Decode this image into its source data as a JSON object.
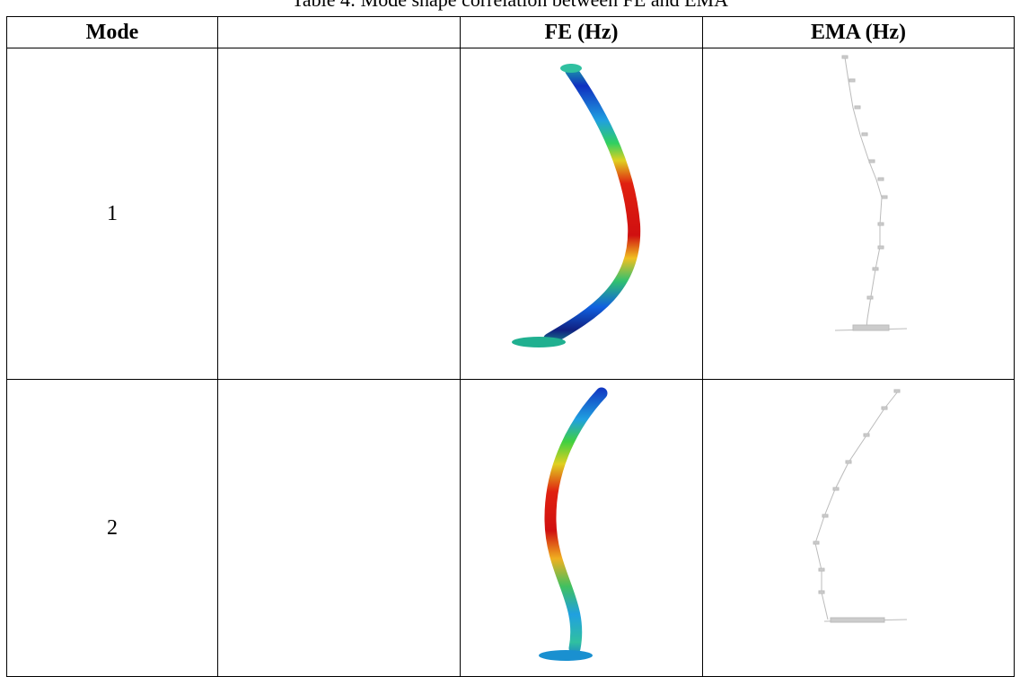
{
  "caption": "Table 4: Mode shape correlation between FE and EMA",
  "table": {
    "header": {
      "mode": "Mode",
      "fe": "FE (Hz)",
      "ema": "EMA (Hz)"
    },
    "rows": [
      {
        "mode": "1"
      },
      {
        "mode": "2"
      }
    ]
  }
}
